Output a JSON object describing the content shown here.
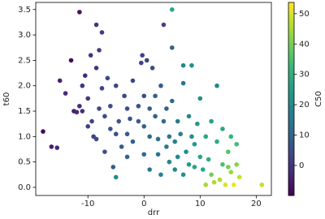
{
  "chart_data": {
    "type": "scatter",
    "x_label": "drr",
    "y_label": "t60",
    "colorbar_label": "C50",
    "colormap": "viridis",
    "xlim": [
      -19.3,
      22.7
    ],
    "ylim": [
      -0.16,
      3.64
    ],
    "clim": [
      -9.9,
      53.7
    ],
    "xticks": [
      -10,
      0,
      10,
      20
    ],
    "yticks": [
      {
        "value": 0,
        "label": "0.0"
      },
      0.5,
      {
        "value": 1,
        "label": "1.0"
      },
      1.5,
      {
        "value": 2,
        "label": "2.0"
      },
      2.5,
      {
        "value": 3,
        "label": "3.0"
      },
      3.5
    ],
    "cticks": [
      0,
      10,
      20,
      30,
      40,
      50
    ],
    "x": [
      -18,
      -16.5,
      -15.5,
      -15,
      -14,
      -13,
      -12.5,
      -12,
      -11.5,
      -11,
      -11.5,
      -11,
      -10.5,
      -10,
      -10,
      -9.5,
      -9.3,
      -9,
      -8.5,
      -8.5,
      -8,
      -8.5,
      -8,
      -7.5,
      -7,
      -7,
      -6.5,
      -6,
      -6,
      -5.5,
      -5,
      -5,
      -4.5,
      -4,
      -3.5,
      -3,
      -3,
      -7.5,
      -3,
      -2.5,
      -2,
      -2,
      -5,
      -1,
      -1,
      -0.5,
      -0.3,
      0,
      0,
      0,
      0.5,
      1,
      1,
      1,
      1.5,
      2,
      2,
      2.5,
      2.5,
      3,
      3.5,
      3,
      3.5,
      4,
      4,
      4.5,
      4.5,
      5,
      5,
      5,
      5.5,
      5.5,
      6,
      6,
      6.5,
      7,
      7,
      7,
      7.5,
      8,
      8,
      8.5,
      8.5,
      9,
      9,
      9.5,
      10,
      10,
      10.5,
      11,
      11.5,
      12,
      12,
      13,
      13,
      13.5,
      14,
      14,
      14.5,
      15,
      15.5,
      15.5,
      16,
      16.5,
      16.5,
      17,
      21,
      11,
      12.5,
      15
    ],
    "values": [
      1.1,
      0.8,
      0.78,
      2.1,
      1.85,
      2.5,
      1.5,
      1.48,
      1.6,
      1.5,
      3.45,
      2.0,
      2.2,
      1.75,
      1.2,
      2.6,
      1.3,
      1.0,
      3.2,
      2.35,
      2.7,
      0.95,
      1.55,
      1.95,
      1.4,
      0.7,
      2.15,
      1.6,
      1.15,
      0.4,
      1.05,
      2.0,
      1.3,
      0.8,
      1.8,
      1.55,
      0.6,
      3.05,
      1.05,
      1.35,
      2.1,
      0.9,
      0.2,
      1.6,
      1.3,
      2.45,
      2.6,
      1.8,
      1.2,
      0.65,
      2.5,
      1.55,
      1.0,
      0.35,
      2.35,
      1.8,
      1.4,
      0.95,
      0.65,
      0.25,
      3.2,
      2.0,
      1.3,
      1.55,
      0.8,
      1.0,
      0.5,
      1.7,
      3.5,
      2.75,
      0.9,
      0.35,
      1.3,
      0.6,
      1.05,
      2.05,
      2.4,
      0.25,
      0.7,
      1.4,
      0.45,
      2.4,
      1.0,
      0.85,
      0.4,
      1.25,
      0.6,
      1.75,
      0.35,
      1.0,
      0.55,
      1.3,
      0.25,
      2.0,
      0.9,
      0.15,
      0.45,
      1.15,
      0.05,
      0.7,
      0.3,
      1.0,
      0.05,
      0.45,
      0.85,
      0.2,
      0.05,
      0.05,
      0.1,
      0.4
    ],
    "c": [
      -8,
      -5,
      -3,
      -4,
      -2,
      -8,
      -5,
      -3,
      -2,
      -1,
      -7,
      0,
      -2,
      1,
      2,
      0,
      3,
      3,
      -1,
      0,
      2,
      5,
      4,
      3,
      5,
      6,
      4,
      5,
      7,
      8,
      6,
      4,
      7,
      9,
      3,
      5,
      10,
      1,
      8,
      6,
      4,
      10,
      20,
      7,
      8,
      3,
      2,
      5,
      10,
      12,
      3,
      8,
      12,
      15,
      5,
      9,
      10,
      14,
      16,
      18,
      3,
      8,
      12,
      10,
      16,
      15,
      18,
      12,
      28,
      10,
      18,
      20,
      16,
      20,
      18,
      15,
      20,
      22,
      22,
      20,
      25,
      22,
      22,
      24,
      28,
      24,
      28,
      22,
      28,
      28,
      30,
      26,
      40,
      20,
      30,
      46,
      35,
      28,
      50,
      36,
      44,
      32,
      52,
      42,
      34,
      48,
      48,
      45,
      46,
      40
    ]
  }
}
